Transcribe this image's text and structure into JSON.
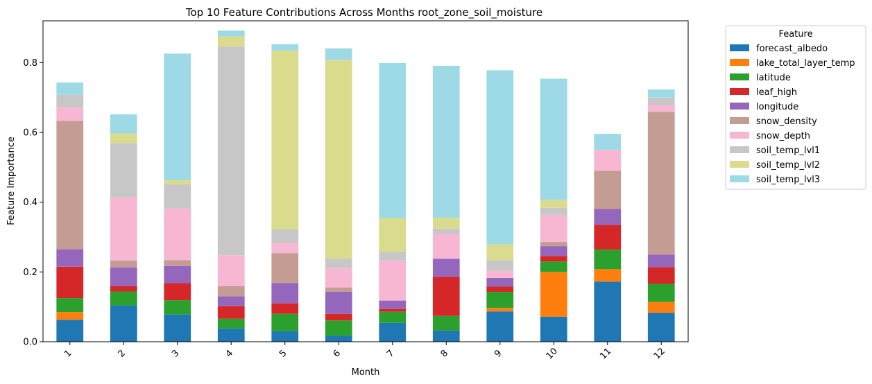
{
  "chart_data": {
    "type": "bar",
    "stacked": true,
    "title": "Top 10 Feature Contributions Across Months root_zone_soil_moisture",
    "xlabel": "Month",
    "ylabel": "Feature Importance",
    "categories": [
      "1",
      "2",
      "3",
      "4",
      "5",
      "6",
      "7",
      "8",
      "9",
      "10",
      "11",
      "12"
    ],
    "ylim": [
      0,
      0.92
    ],
    "yticks": [
      0.0,
      0.2,
      0.4,
      0.6,
      0.8
    ],
    "ytick_labels": [
      "0.0",
      "0.2",
      "0.4",
      "0.6",
      "0.8"
    ],
    "grid": false,
    "legend": {
      "title": "Feature",
      "placement": "outside-top-right"
    },
    "series": [
      {
        "name": "forecast_albedo",
        "color": "#1f77b4",
        "values": [
          0.063,
          0.104,
          0.078,
          0.038,
          0.03,
          0.017,
          0.054,
          0.032,
          0.087,
          0.072,
          0.172,
          0.083
        ]
      },
      {
        "name": "lake_total_layer_temp",
        "color": "#ff7f0e",
        "values": [
          0.022,
          0.0,
          0.0,
          0.0,
          0.0,
          0.0,
          0.0,
          0.0,
          0.01,
          0.128,
          0.036,
          0.031
        ]
      },
      {
        "name": "latitude",
        "color": "#2ca02c",
        "values": [
          0.04,
          0.04,
          0.041,
          0.028,
          0.05,
          0.044,
          0.032,
          0.042,
          0.046,
          0.03,
          0.056,
          0.052
        ]
      },
      {
        "name": "leaf_high",
        "color": "#d62728",
        "values": [
          0.09,
          0.015,
          0.049,
          0.036,
          0.03,
          0.019,
          0.008,
          0.112,
          0.015,
          0.016,
          0.071,
          0.048
        ]
      },
      {
        "name": "longitude",
        "color": "#9467bd",
        "values": [
          0.05,
          0.054,
          0.049,
          0.028,
          0.058,
          0.063,
          0.024,
          0.052,
          0.025,
          0.028,
          0.046,
          0.036
        ]
      },
      {
        "name": "snow_density",
        "color": "#c49c94",
        "values": [
          0.368,
          0.02,
          0.017,
          0.029,
          0.086,
          0.012,
          0.0,
          0.0,
          0.0,
          0.012,
          0.109,
          0.409
        ]
      },
      {
        "name": "snow_depth",
        "color": "#f7b6d2",
        "values": [
          0.038,
          0.181,
          0.148,
          0.089,
          0.029,
          0.056,
          0.115,
          0.071,
          0.021,
          0.078,
          0.06,
          0.02
        ]
      },
      {
        "name": "soil_temp_lvl1",
        "color": "#c7c7c7",
        "values": [
          0.037,
          0.155,
          0.069,
          0.598,
          0.039,
          0.028,
          0.025,
          0.015,
          0.03,
          0.02,
          0.0,
          0.021
        ]
      },
      {
        "name": "soil_temp_lvl2",
        "color": "#dbdb8d",
        "values": [
          0.0,
          0.028,
          0.012,
          0.029,
          0.513,
          0.569,
          0.096,
          0.031,
          0.045,
          0.022,
          0.0,
          0.0
        ]
      },
      {
        "name": "soil_temp_lvl3",
        "color": "#9edae5",
        "values": [
          0.035,
          0.055,
          0.363,
          0.017,
          0.018,
          0.033,
          0.445,
          0.436,
          0.499,
          0.348,
          0.046,
          0.023
        ]
      }
    ]
  }
}
